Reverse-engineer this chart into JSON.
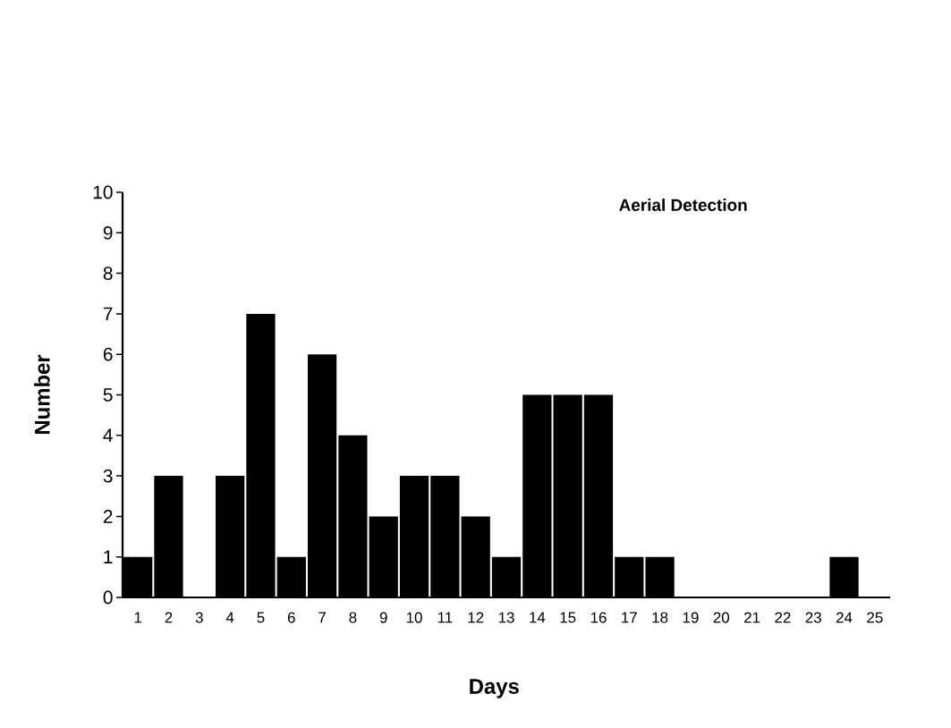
{
  "chart_data": {
    "type": "bar",
    "xlabel": "Days",
    "ylabel": "Number",
    "annotations": [
      "Aerial Detection"
    ],
    "categories": [
      "1",
      "2",
      "3",
      "4",
      "5",
      "6",
      "7",
      "8",
      "9",
      "10",
      "11",
      "12",
      "13",
      "14",
      "15",
      "16",
      "17",
      "18",
      "19",
      "20",
      "21",
      "22",
      "23",
      "24",
      "25"
    ],
    "values": [
      1,
      3,
      0,
      3,
      7,
      1,
      6,
      4,
      2,
      3,
      3,
      2,
      1,
      5,
      5,
      5,
      1,
      1,
      0,
      0,
      0,
      0,
      0,
      1,
      0
    ],
    "color": "#000000",
    "ylim": [
      0,
      10
    ],
    "yticks": [
      0,
      1,
      2,
      3,
      4,
      5,
      6,
      7,
      8,
      9,
      10
    ]
  }
}
